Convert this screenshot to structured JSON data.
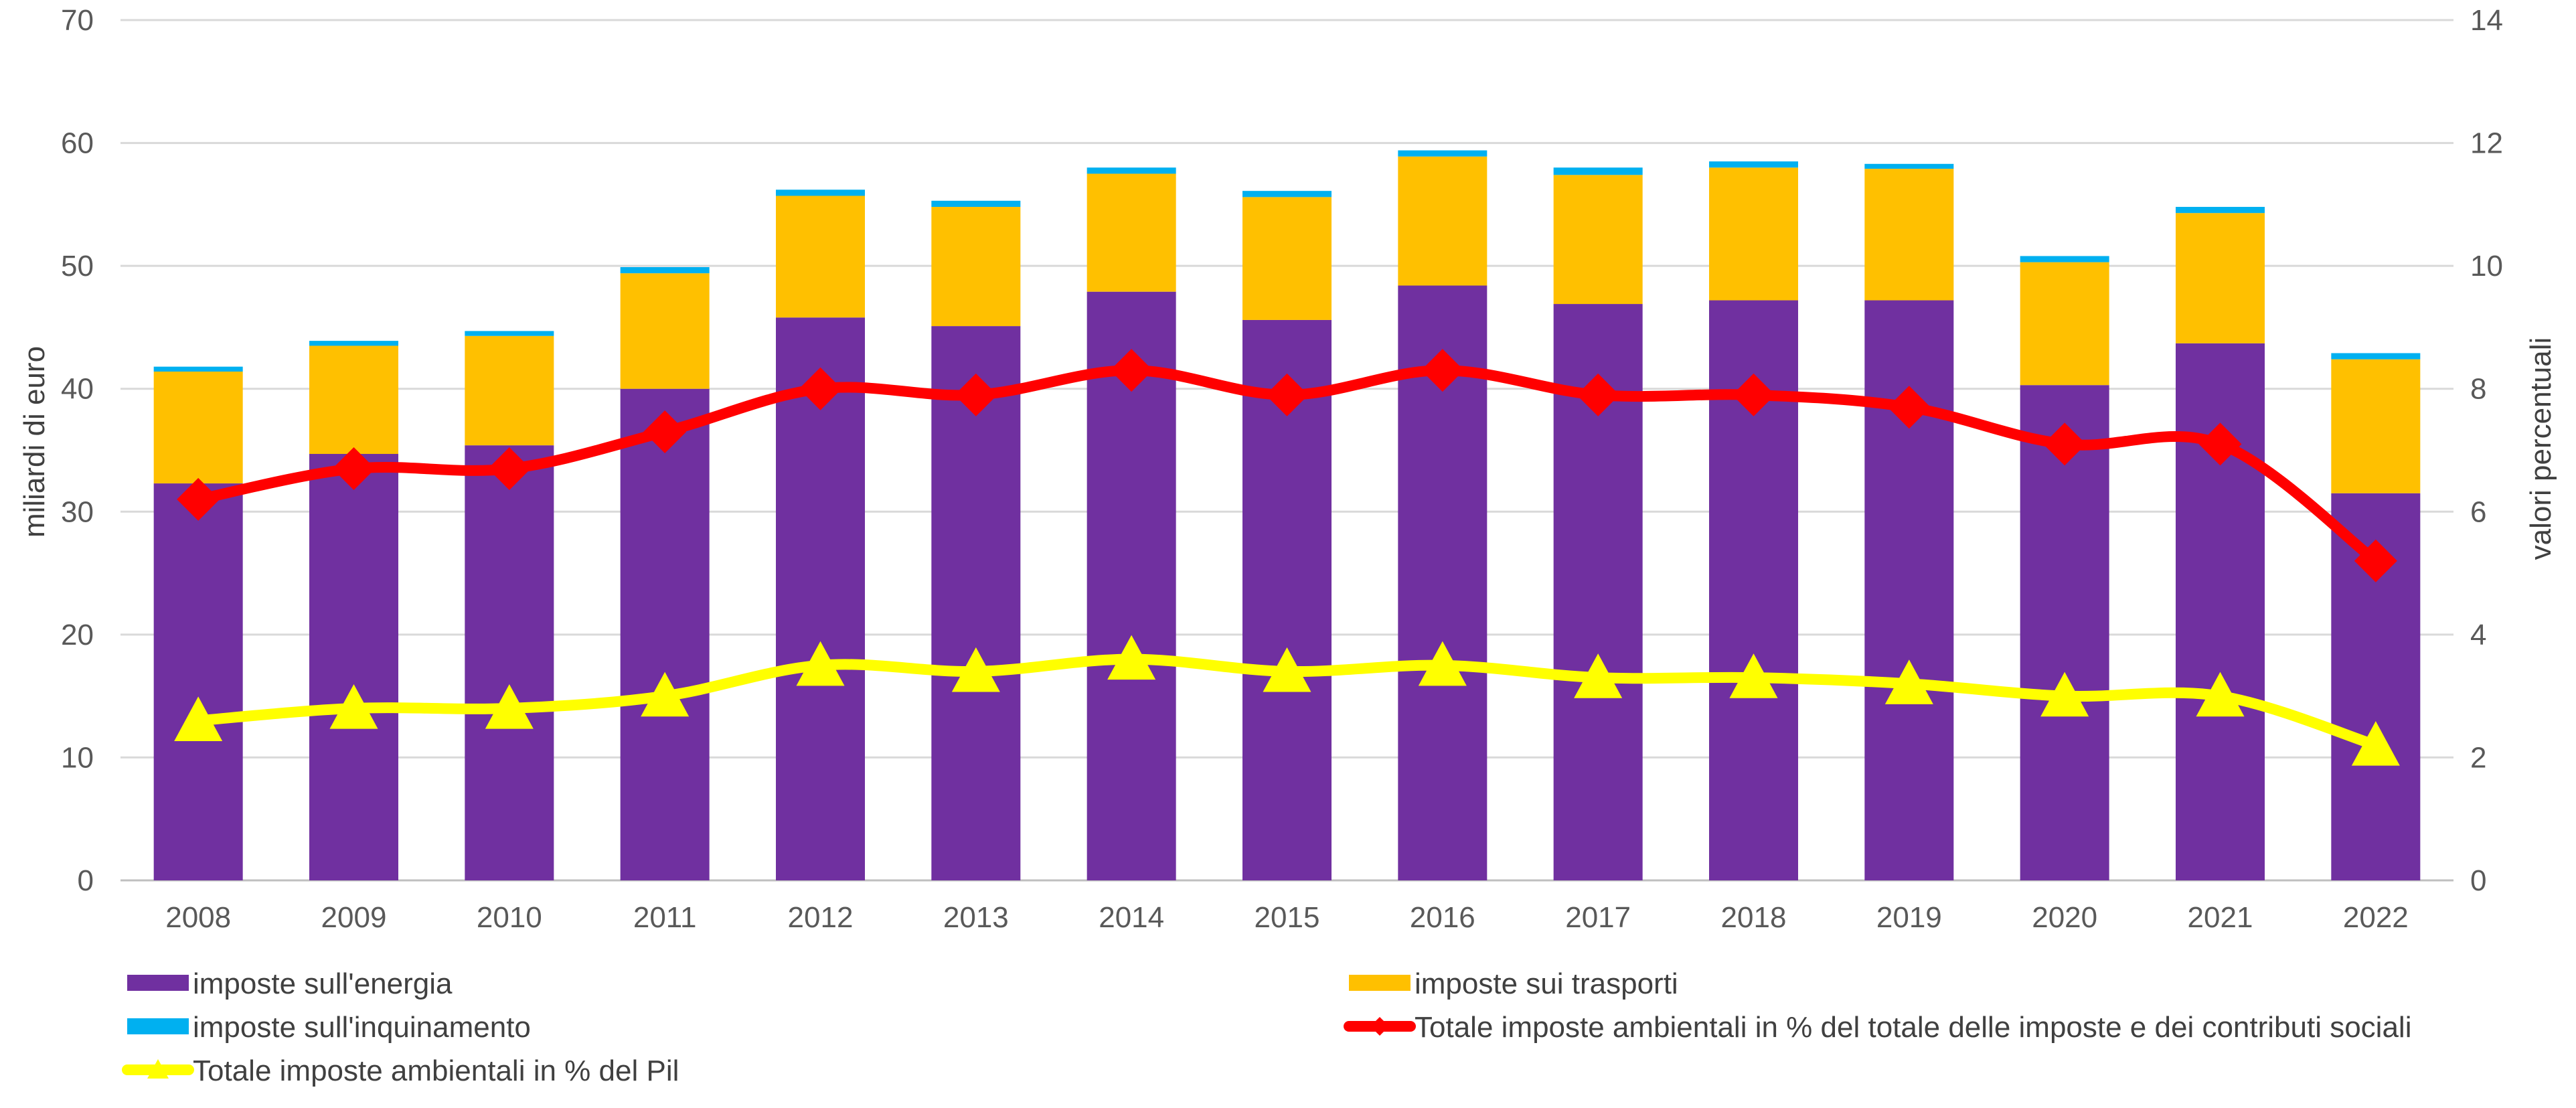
{
  "chart_data": {
    "type": "bar",
    "stacked": true,
    "title": "",
    "xlabel": "",
    "ylabel": "miliardi di euro",
    "y2label": "valori percentuali",
    "ylim": [
      0,
      70
    ],
    "y2lim": [
      0,
      14
    ],
    "yticks": [
      "0",
      "10",
      "20",
      "30",
      "40",
      "50",
      "60",
      "70"
    ],
    "y2ticks": [
      "0",
      "2",
      "4",
      "6",
      "8",
      "10",
      "12",
      "14"
    ],
    "grid": true,
    "legend_position": "bottom",
    "categories": [
      "2008",
      "2009",
      "2010",
      "2011",
      "2012",
      "2013",
      "2014",
      "2015",
      "2016",
      "2017",
      "2018",
      "2019",
      "2020",
      "2021",
      "2022"
    ],
    "series": [
      {
        "name": "imposte sull'energia",
        "kind": "bar",
        "axis": "left",
        "color": "#7030a0",
        "values": [
          32.3,
          34.7,
          35.4,
          40.0,
          45.8,
          45.1,
          47.9,
          45.6,
          48.4,
          46.9,
          47.2,
          47.2,
          40.3,
          43.7,
          31.5
        ]
      },
      {
        "name": "imposte sui trasporti",
        "kind": "bar",
        "axis": "left",
        "color": "#ffc000",
        "values": [
          9.1,
          8.8,
          8.9,
          9.4,
          9.9,
          9.7,
          9.6,
          10.0,
          10.5,
          10.5,
          10.8,
          10.7,
          10.0,
          10.6,
          10.9
        ]
      },
      {
        "name": "imposte sull'inquinamento",
        "kind": "bar",
        "axis": "left",
        "color": "#00b0f0",
        "values": [
          0.4,
          0.4,
          0.4,
          0.5,
          0.5,
          0.5,
          0.5,
          0.5,
          0.5,
          0.6,
          0.5,
          0.4,
          0.5,
          0.5,
          0.5
        ]
      },
      {
        "name": "Totale imposte ambientali in % del totale delle imposte e dei contributi sociali",
        "kind": "line",
        "axis": "right",
        "color": "#ff0000",
        "marker": "diamond",
        "values": [
          6.2,
          6.7,
          6.7,
          7.3,
          8.0,
          7.9,
          8.3,
          7.9,
          8.3,
          7.9,
          7.9,
          7.7,
          7.1,
          7.1,
          5.2
        ]
      },
      {
        "name": "Totale imposte ambientali in % del Pil",
        "kind": "line",
        "axis": "right",
        "color": "#ffff00",
        "marker": "triangle",
        "values": [
          2.6,
          2.8,
          2.8,
          3.0,
          3.5,
          3.4,
          3.6,
          3.4,
          3.5,
          3.3,
          3.3,
          3.2,
          3.0,
          3.0,
          2.2
        ]
      }
    ]
  }
}
